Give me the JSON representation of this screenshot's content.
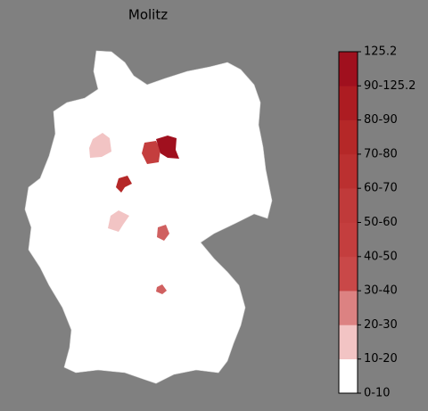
{
  "title": "Molitz",
  "colorbar": {
    "labels": [
      "0-10",
      "10-20",
      "20-30",
      "30-40",
      "40-50",
      "50-60",
      "60-70",
      "70-80",
      "80-90",
      "90-125.2",
      "125.2"
    ],
    "colors": [
      "#ffffff",
      "#f2c4c4",
      "#dc8282",
      "#c94848",
      "#c43e3e",
      "#c03a3a",
      "#bb3030",
      "#b52828",
      "#ad1c22",
      "#a0101e"
    ]
  }
}
